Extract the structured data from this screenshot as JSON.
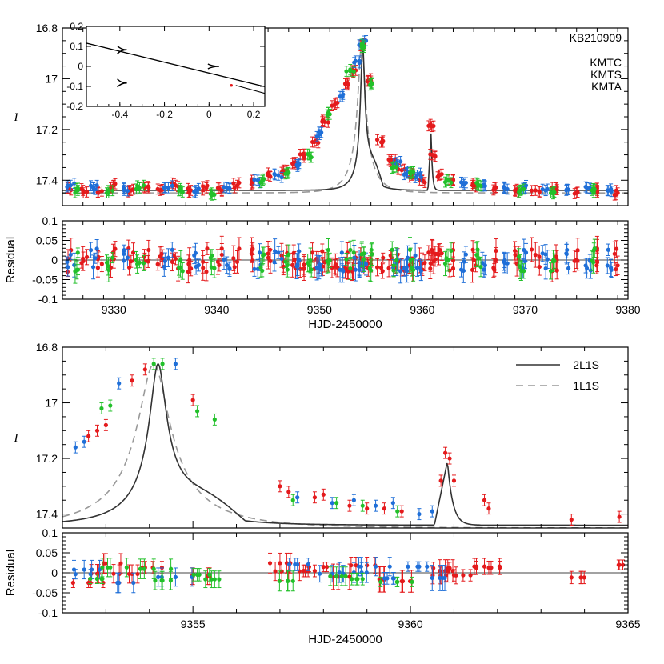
{
  "chart_data": [
    {
      "panel": "top-lightcurve",
      "type": "scatter",
      "event_label": "KB210909",
      "ylabel": "I",
      "xlim": [
        9325,
        9380
      ],
      "ylim": [
        17.5,
        16.8
      ],
      "xticks": [
        9330,
        9340,
        9350,
        9360,
        9370,
        9380
      ],
      "yticks": [
        "16.8",
        "17",
        "17.2",
        "17.4"
      ],
      "legend": {
        "placement": "top-right",
        "entries": [
          {
            "name": "KMTC",
            "color": "#e41a1c"
          },
          {
            "name": "KMTS",
            "color": "#1f6fd8"
          },
          {
            "name": "KMTA",
            "color": "#22c02a"
          }
        ]
      },
      "series": [
        {
          "name": "KMTC",
          "points": [
            [
              9325.5,
              17.43
            ],
            [
              9327.0,
              17.44
            ],
            [
              9328.5,
              17.45
            ],
            [
              9330.0,
              17.42
            ],
            [
              9331.5,
              17.44
            ],
            [
              9333.0,
              17.43
            ],
            [
              9334.5,
              17.44
            ],
            [
              9336.0,
              17.42
            ],
            [
              9337.5,
              17.44
            ],
            [
              9339.0,
              17.43
            ],
            [
              9340.5,
              17.44
            ],
            [
              9342.0,
              17.42
            ],
            [
              9343.5,
              17.41
            ],
            [
              9345.0,
              17.38
            ],
            [
              9346.5,
              17.36
            ],
            [
              9347.5,
              17.33
            ],
            [
              9348.5,
              17.3
            ],
            [
              9349.5,
              17.25
            ],
            [
              9350.5,
              17.17
            ],
            [
              9351.5,
              17.1
            ],
            [
              9352.5,
              17.02
            ],
            [
              9353.2,
              16.97
            ],
            [
              9354.0,
              16.87
            ],
            [
              9355.0,
              17.0
            ],
            [
              9356.0,
              17.25
            ],
            [
              9357.0,
              17.32
            ],
            [
              9358.0,
              17.36
            ],
            [
              9359.0,
              17.38
            ],
            [
              9360.0,
              17.4
            ],
            [
              9360.8,
              17.18
            ],
            [
              9361.0,
              17.3
            ],
            [
              9361.6,
              17.38
            ],
            [
              9363.0,
              17.4
            ],
            [
              9365.0,
              17.42
            ],
            [
              9367.0,
              17.43
            ],
            [
              9369.0,
              17.44
            ],
            [
              9371.0,
              17.44
            ],
            [
              9373.0,
              17.43
            ],
            [
              9375.0,
              17.45
            ],
            [
              9377.0,
              17.44
            ],
            [
              9379.0,
              17.45
            ]
          ]
        },
        {
          "name": "KMTS",
          "points": [
            [
              9325.8,
              17.42
            ],
            [
              9328.0,
              17.43
            ],
            [
              9331.0,
              17.44
            ],
            [
              9335.3,
              17.43
            ],
            [
              9338.0,
              17.44
            ],
            [
              9341.0,
              17.43
            ],
            [
              9344.0,
              17.4
            ],
            [
              9346.0,
              17.38
            ],
            [
              9348.0,
              17.34
            ],
            [
              9350.0,
              17.22
            ],
            [
              9352.0,
              17.07
            ],
            [
              9353.5,
              16.93
            ],
            [
              9354.2,
              16.86
            ],
            [
              9357.5,
              17.33
            ],
            [
              9358.5,
              17.37
            ],
            [
              9359.5,
              17.38
            ],
            [
              9364.0,
              17.41
            ],
            [
              9366.0,
              17.42
            ],
            [
              9368.0,
              17.43
            ],
            [
              9370.0,
              17.43
            ],
            [
              9372.0,
              17.44
            ],
            [
              9374.0,
              17.44
            ],
            [
              9376.0,
              17.43
            ],
            [
              9378.0,
              17.44
            ]
          ]
        },
        {
          "name": "KMTA",
          "points": [
            [
              9326.5,
              17.44
            ],
            [
              9329.5,
              17.45
            ],
            [
              9332.5,
              17.43
            ],
            [
              9336.5,
              17.44
            ],
            [
              9339.5,
              17.45
            ],
            [
              9344.5,
              17.4
            ],
            [
              9347.0,
              17.37
            ],
            [
              9349.0,
              17.3
            ],
            [
              9351.0,
              17.14
            ],
            [
              9353.0,
              16.97
            ],
            [
              9354.3,
              16.87
            ],
            [
              9355.1,
              17.02
            ],
            [
              9357.2,
              17.35
            ],
            [
              9358.8,
              17.37
            ],
            [
              9362.5,
              17.4
            ],
            [
              9365.5,
              17.42
            ],
            [
              9369.5,
              17.44
            ],
            [
              9372.5,
              17.45
            ],
            [
              9376.5,
              17.44
            ]
          ]
        }
      ],
      "inset": {
        "xlim": [
          -0.55,
          0.25
        ],
        "ylim": [
          -0.2,
          0.2
        ],
        "xticks": [
          "-0.4",
          "-0.2",
          "0",
          "0.2"
        ],
        "yticks": [
          "0.2",
          "0.1",
          "0",
          "-0.1",
          "-0.2"
        ]
      }
    },
    {
      "panel": "top-residual",
      "type": "scatter",
      "ylabel": "Residual",
      "xlabel": "HJD-2450000",
      "xlim": [
        9325,
        9380
      ],
      "ylim": [
        -0.1,
        0.1
      ],
      "yticks": [
        "0.1",
        "0.05",
        "0",
        "-0.05",
        "-0.1"
      ]
    },
    {
      "panel": "bottom-lightcurve",
      "type": "scatter",
      "ylabel": "I",
      "xlim": [
        9352,
        9365
      ],
      "ylim": [
        17.45,
        16.8
      ],
      "xticks": [
        9355,
        9360,
        9365
      ],
      "yticks": [
        "16.8",
        "17",
        "17.2",
        "17.4"
      ],
      "legend": {
        "placement": "top-right",
        "entries": [
          {
            "name": "2L1S",
            "style": "solid"
          },
          {
            "name": "1L1S",
            "style": "dashed"
          }
        ]
      },
      "series": [
        {
          "name": "KMTC",
          "points": [
            [
              9352.6,
              17.12
            ],
            [
              9352.8,
              17.1
            ],
            [
              9353.0,
              17.08
            ],
            [
              9353.6,
              16.92
            ],
            [
              9353.9,
              16.88
            ],
            [
              9355.0,
              16.99
            ],
            [
              9357.0,
              17.3
            ],
            [
              9357.2,
              17.32
            ],
            [
              9357.8,
              17.34
            ],
            [
              9358.0,
              17.33
            ],
            [
              9358.6,
              17.37
            ],
            [
              9359.0,
              17.38
            ],
            [
              9359.4,
              17.38
            ],
            [
              9359.8,
              17.39
            ],
            [
              9360.7,
              17.28
            ],
            [
              9360.8,
              17.18
            ],
            [
              9360.9,
              17.2
            ],
            [
              9361.0,
              17.28
            ],
            [
              9361.7,
              17.35
            ],
            [
              9361.8,
              17.38
            ],
            [
              9363.7,
              17.42
            ],
            [
              9364.8,
              17.41
            ]
          ]
        },
        {
          "name": "KMTS",
          "points": [
            [
              9352.3,
              17.16
            ],
            [
              9352.5,
              17.14
            ],
            [
              9353.3,
              16.93
            ],
            [
              9354.6,
              16.86
            ],
            [
              9357.4,
              17.34
            ],
            [
              9358.2,
              17.36
            ],
            [
              9358.7,
              17.35
            ],
            [
              9359.2,
              17.37
            ],
            [
              9359.6,
              17.36
            ],
            [
              9360.2,
              17.4
            ],
            [
              9360.5,
              17.39
            ]
          ]
        },
        {
          "name": "KMTA",
          "points": [
            [
              9352.9,
              17.02
            ],
            [
              9353.1,
              17.01
            ],
            [
              9354.1,
              16.86
            ],
            [
              9354.3,
              16.86
            ],
            [
              9355.1,
              17.03
            ],
            [
              9355.5,
              17.06
            ],
            [
              9357.3,
              17.35
            ],
            [
              9358.3,
              17.36
            ],
            [
              9358.9,
              17.37
            ],
            [
              9359.7,
              17.39
            ]
          ]
        }
      ]
    },
    {
      "panel": "bottom-residual",
      "type": "scatter",
      "ylabel": "Residual",
      "xlabel": "HJD-2450000",
      "xlim": [
        9352,
        9365
      ],
      "ylim": [
        -0.1,
        0.1
      ],
      "yticks": [
        "0.1",
        "0.05",
        "0",
        "-0.05",
        "-0.1"
      ]
    }
  ]
}
